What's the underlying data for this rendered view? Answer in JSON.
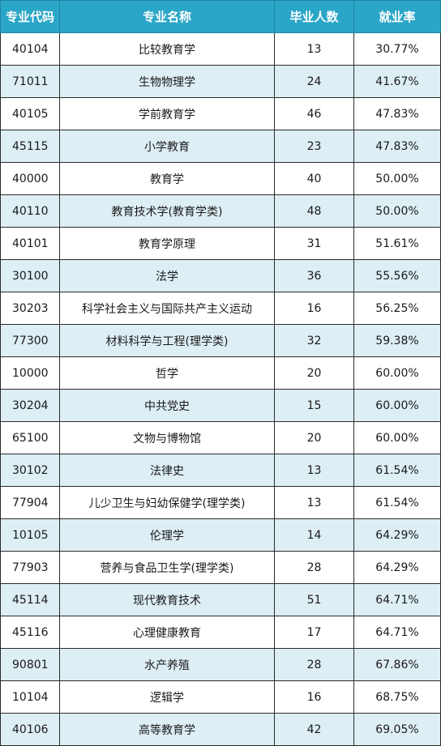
{
  "headers": [
    "专业代码",
    "专业名称",
    "毕业人数",
    "就业率"
  ],
  "rows": [
    {
      "code": "40104",
      "name": "比较教育学",
      "grads": "13",
      "rate": "30.77%"
    },
    {
      "code": "71011",
      "name": "生物物理学",
      "grads": "24",
      "rate": "41.67%"
    },
    {
      "code": "40105",
      "name": "学前教育学",
      "grads": "46",
      "rate": "47.83%"
    },
    {
      "code": "45115",
      "name": "小学教育",
      "grads": "23",
      "rate": "47.83%"
    },
    {
      "code": "40000",
      "name": "教育学",
      "grads": "40",
      "rate": "50.00%"
    },
    {
      "code": "40110",
      "name": "教育技术学(教育学类)",
      "grads": "48",
      "rate": "50.00%"
    },
    {
      "code": "40101",
      "name": "教育学原理",
      "grads": "31",
      "rate": "51.61%"
    },
    {
      "code": "30100",
      "name": "法学",
      "grads": "36",
      "rate": "55.56%"
    },
    {
      "code": "30203",
      "name": "科学社会主义与国际共产主义运动",
      "grads": "16",
      "rate": "56.25%"
    },
    {
      "code": "77300",
      "name": "材料科学与工程(理学类)",
      "grads": "32",
      "rate": "59.38%"
    },
    {
      "code": "10000",
      "name": "哲学",
      "grads": "20",
      "rate": "60.00%"
    },
    {
      "code": "30204",
      "name": "中共党史",
      "grads": "15",
      "rate": "60.00%"
    },
    {
      "code": "65100",
      "name": "文物与博物馆",
      "grads": "20",
      "rate": "60.00%"
    },
    {
      "code": "30102",
      "name": "法律史",
      "grads": "13",
      "rate": "61.54%"
    },
    {
      "code": "77904",
      "name": "儿少卫生与妇幼保健学(理学类)",
      "grads": "13",
      "rate": "61.54%"
    },
    {
      "code": "10105",
      "name": "伦理学",
      "grads": "14",
      "rate": "64.29%"
    },
    {
      "code": "77903",
      "name": "营养与食品卫生学(理学类)",
      "grads": "28",
      "rate": "64.29%"
    },
    {
      "code": "45114",
      "name": "现代教育技术",
      "grads": "51",
      "rate": "64.71%"
    },
    {
      "code": "45116",
      "name": "心理健康教育",
      "grads": "17",
      "rate": "64.71%"
    },
    {
      "code": "90801",
      "name": "水产养殖",
      "grads": "28",
      "rate": "67.86%"
    },
    {
      "code": "10104",
      "name": "逻辑学",
      "grads": "16",
      "rate": "68.75%"
    },
    {
      "code": "40106",
      "name": "高等教育学",
      "grads": "42",
      "rate": "69.05%"
    }
  ],
  "colors": {
    "header_bg": "#2aa6c8",
    "header_text": "#ffffff",
    "row_alt_bg": "#ddeef4",
    "row_bg": "#ffffff",
    "border": "#2b2b2b"
  }
}
